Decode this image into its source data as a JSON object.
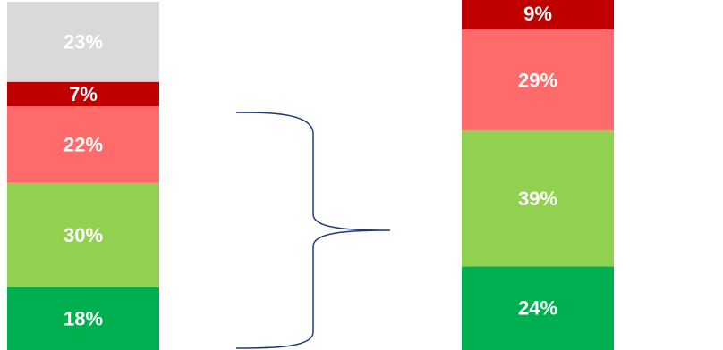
{
  "chart_data": {
    "type": "bar",
    "stacked": true,
    "normalized_to_percent": true,
    "title": "",
    "xlabel": "",
    "ylabel": "",
    "categories": [
      "left-bar",
      "right-bar"
    ],
    "bars": [
      {
        "segments": [
          {
            "value": 18,
            "label": "18%",
            "color": "#00b050"
          },
          {
            "value": 30,
            "label": "30%",
            "color": "#92d050"
          },
          {
            "value": 22,
            "label": "22%",
            "color": "#ff6b6b"
          },
          {
            "value": 7,
            "label": "7%",
            "color": "#c00000"
          },
          {
            "value": 23,
            "label": "23%",
            "color": "#d9d9d9"
          }
        ]
      },
      {
        "segments": [
          {
            "value": 24,
            "label": "24%",
            "color": "#00b050"
          },
          {
            "value": 39,
            "label": "39%",
            "color": "#92d050"
          },
          {
            "value": 29,
            "label": "29%",
            "color": "#ff6b6b"
          },
          {
            "value": 9,
            "label": "9%",
            "color": "#c00000"
          }
        ]
      }
    ],
    "connector": {
      "kind": "curly-brace",
      "color": "#1f3a7a"
    }
  }
}
